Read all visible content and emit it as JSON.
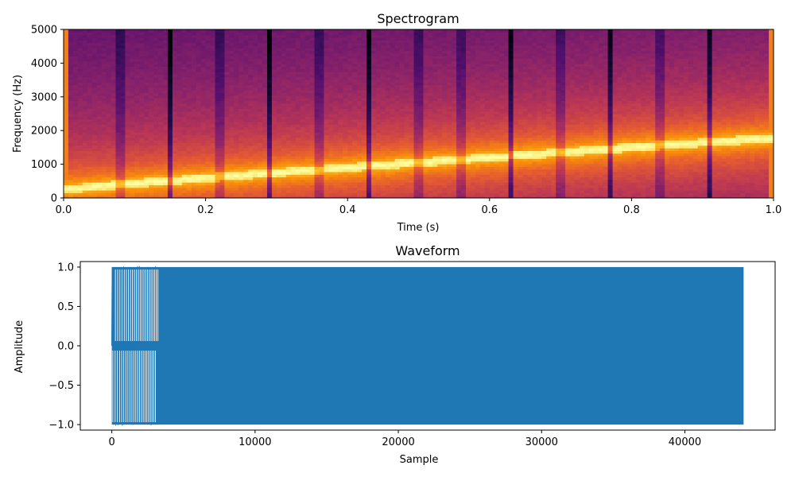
{
  "chart_data": [
    {
      "type": "heatmap",
      "title": "Spectrogram",
      "xlabel": "Time (s)",
      "ylabel": "Frequency (Hz)",
      "xlim": [
        0.0,
        1.0
      ],
      "ylim": [
        0,
        5000
      ],
      "xticks": [
        0.0,
        0.2,
        0.4,
        0.6,
        0.8,
        1.0
      ],
      "xtick_labels": [
        "0.0",
        "0.2",
        "0.4",
        "0.6",
        "0.8",
        "1.0"
      ],
      "yticks": [
        0,
        1000,
        2000,
        3000,
        4000,
        5000
      ],
      "ytick_labels": [
        "0",
        "1000",
        "2000",
        "3000",
        "4000",
        "5000"
      ],
      "colormap": "inferno",
      "ridge": {
        "time": [
          0.0,
          0.1,
          0.2,
          0.3,
          0.4,
          0.5,
          0.6,
          0.7,
          0.8,
          0.9,
          1.0
        ],
        "frequency_hz": [
          270,
          440,
          600,
          760,
          910,
          1060,
          1210,
          1360,
          1510,
          1650,
          1790
        ]
      },
      "dark_column_times": [
        0.08,
        0.15,
        0.22,
        0.29,
        0.36,
        0.43,
        0.5,
        0.56,
        0.63,
        0.7,
        0.77,
        0.84,
        0.91
      ],
      "grid": false
    },
    {
      "type": "line",
      "title": "Waveform",
      "xlabel": "Sample",
      "ylabel": "Amplitude",
      "xlim": [
        -2200,
        46300
      ],
      "ylim": [
        -1.07,
        1.07
      ],
      "xticks": [
        0,
        10000,
        20000,
        30000,
        40000
      ],
      "xtick_labels": [
        "0",
        "10000",
        "20000",
        "30000",
        "40000"
      ],
      "yticks": [
        -1.0,
        -0.5,
        0.0,
        0.5,
        1.0
      ],
      "ytick_labels": [
        "−1.0",
        "−0.5",
        "0.0",
        "0.5",
        "1.0"
      ],
      "series": [
        {
          "x_start": 0,
          "x_end": 44099,
          "amplitude": 1.0,
          "color": "#1f77b4",
          "signal": "linear chirp",
          "start_hz": 270,
          "end_hz": 1790
        }
      ],
      "grid": false
    }
  ]
}
